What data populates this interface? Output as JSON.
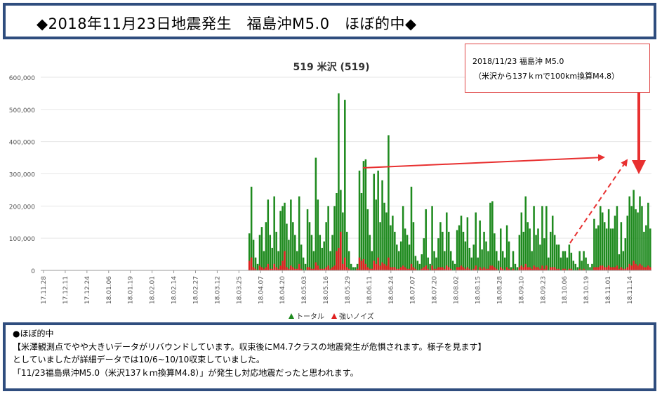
{
  "header": {
    "title": "◆2018年11月23日地震発生　福島沖M5.0　ほぼ的中◆"
  },
  "annotation": {
    "line1": "2018/11/23 福島沖 M5.0",
    "line2": "（米沢から137ｋｍで100km換算M4.8）"
  },
  "summary": {
    "lines": [
      "●ほぼ的中",
      "【米澤観測点でやや大きいデータがリバウンドしています。収束後にM4.7クラスの地震発生が危惧されます。様子を見ます】",
      "としていましたが詳細データでは10/6~10/10収束していました。",
      "「11/23福島県沖M5.0（米沢137ｋｍ換算M4.8）」が発生し対応地震だったと思われます。"
    ]
  },
  "colors": {
    "frame": "#2f4d7e",
    "total": "#1e8a1e",
    "noise": "#e02020",
    "arrow": "#e83030",
    "grid": "#e6e6e6"
  },
  "chart_data": {
    "type": "bar",
    "title": "519 米沢 (519)",
    "ylim": [
      0,
      600000
    ],
    "yticks": [
      "0",
      "100,000",
      "200,000",
      "300,000",
      "400,000",
      "500,000",
      "600,000"
    ],
    "xticks": [
      "17.11.28",
      "17.12.11",
      "17.12.24",
      "18.01.06",
      "18.01.19",
      "18.02.01",
      "18.02.14",
      "18.02.27",
      "18.03.12",
      "18.03.25",
      "18.04.07",
      "18.04.20",
      "18.05.03",
      "18.05.16",
      "18.05.29",
      "18.06.11",
      "18.06.24",
      "18.07.07",
      "18.07.20",
      "18.08.02",
      "18.08.15",
      "18.08.28",
      "18.09.10",
      "18.09.23",
      "18.10.06",
      "18.10.19",
      "18.11.01",
      "18.11.14"
    ],
    "grid": true,
    "legend_position": "bottom",
    "series": [
      {
        "name": "トータル",
        "values": [
          0,
          0,
          0,
          0,
          0,
          0,
          0,
          0,
          0,
          0,
          0,
          0,
          0,
          0,
          0,
          0,
          0,
          0,
          0,
          0,
          0,
          0,
          0,
          0,
          0,
          0,
          0,
          0,
          0,
          0,
          0,
          0,
          0,
          0,
          0,
          0,
          0,
          0,
          0,
          0,
          0,
          0,
          0,
          0,
          0,
          0,
          0,
          0,
          0,
          0,
          0,
          0,
          0,
          0,
          0,
          0,
          0,
          0,
          0,
          0,
          0,
          0,
          0,
          0,
          0,
          0,
          0,
          0,
          0,
          0,
          0,
          0,
          0,
          0,
          0,
          0,
          0,
          0,
          0,
          0,
          0,
          0,
          0,
          0,
          0,
          0,
          0,
          0,
          0,
          0,
          0,
          0,
          0,
          0,
          0,
          0,
          0,
          0,
          0,
          0,
          115000,
          260000,
          95000,
          40000,
          20000,
          110000,
          135000,
          60000,
          150000,
          220000,
          110000,
          70000,
          230000,
          120000,
          60000,
          185000,
          200000,
          210000,
          145000,
          95000,
          220000,
          150000,
          110000,
          60000,
          230000,
          80000,
          40000,
          20000,
          190000,
          150000,
          110000,
          60000,
          350000,
          220000,
          110000,
          70000,
          90000,
          150000,
          200000,
          60000,
          110000,
          200000,
          240000,
          550000,
          250000,
          180000,
          530000,
          120000,
          60000,
          20000,
          10000,
          10000,
          20000,
          310000,
          240000,
          340000,
          345000,
          190000,
          110000,
          60000,
          300000,
          220000,
          310000,
          150000,
          280000,
          210000,
          180000,
          420000,
          140000,
          170000,
          120000,
          80000,
          60000,
          90000,
          200000,
          130000,
          110000,
          80000,
          260000,
          150000,
          45000,
          30000,
          20000,
          50000,
          100000,
          190000,
          40000,
          20000,
          200000,
          60000,
          40000,
          100000,
          150000,
          120000,
          60000,
          180000,
          120000,
          60000,
          30000,
          20000,
          125000,
          140000,
          170000,
          120000,
          90000,
          165000,
          70000,
          40000,
          80000,
          180000,
          40000,
          155000,
          65000,
          120000,
          90000,
          60000,
          210000,
          215000,
          115000,
          60000,
          30000,
          130000,
          60000,
          40000,
          140000,
          90000,
          10000,
          60000,
          20000,
          10000,
          110000,
          180000,
          120000,
          230000,
          150000,
          130000,
          60000,
          200000,
          110000,
          130000,
          80000,
          200000,
          100000,
          200000,
          40000,
          120000,
          170000,
          110000,
          80000,
          80000,
          40000,
          60000,
          60000,
          40000,
          80000,
          55000,
          30000,
          20000,
          10000,
          60000,
          30000,
          60000,
          40000,
          20000,
          10000,
          20000,
          160000,
          130000,
          140000,
          200000,
          180000,
          150000,
          130000,
          190000,
          130000,
          130000,
          170000,
          200000,
          50000,
          150000,
          60000,
          100000,
          170000,
          230000,
          200000,
          250000,
          190000,
          180000,
          230000,
          200000,
          120000,
          140000,
          210000,
          130000
        ]
      },
      {
        "name": "強いノイズ",
        "values": [
          0,
          0,
          0,
          0,
          0,
          0,
          0,
          0,
          0,
          0,
          0,
          0,
          0,
          0,
          0,
          0,
          0,
          0,
          0,
          0,
          0,
          0,
          0,
          0,
          0,
          0,
          0,
          0,
          0,
          0,
          0,
          0,
          0,
          0,
          0,
          0,
          0,
          0,
          0,
          0,
          0,
          0,
          0,
          0,
          0,
          0,
          0,
          0,
          0,
          0,
          0,
          0,
          0,
          0,
          0,
          0,
          0,
          0,
          0,
          0,
          0,
          0,
          0,
          0,
          0,
          0,
          0,
          0,
          0,
          0,
          0,
          0,
          0,
          0,
          0,
          0,
          0,
          0,
          0,
          0,
          0,
          0,
          0,
          0,
          0,
          0,
          0,
          0,
          0,
          0,
          0,
          0,
          0,
          0,
          0,
          0,
          0,
          0,
          0,
          0,
          30000,
          40000,
          10000,
          5000,
          0,
          15000,
          10000,
          5000,
          10000,
          20000,
          5000,
          5000,
          20000,
          10000,
          5000,
          15000,
          30000,
          60000,
          10000,
          5000,
          15000,
          10000,
          5000,
          5000,
          20000,
          5000,
          0,
          0,
          10000,
          10000,
          5000,
          5000,
          25000,
          15000,
          5000,
          5000,
          5000,
          10000,
          15000,
          5000,
          10000,
          15000,
          60000,
          70000,
          120000,
          20000,
          40000,
          10000,
          5000,
          0,
          0,
          0,
          5000,
          40000,
          30000,
          35000,
          20000,
          10000,
          5000,
          5000,
          30000,
          20000,
          40000,
          15000,
          25000,
          20000,
          15000,
          40000,
          10000,
          10000,
          10000,
          5000,
          5000,
          10000,
          15000,
          10000,
          5000,
          5000,
          20000,
          10000,
          5000,
          0,
          0,
          5000,
          10000,
          15000,
          5000,
          0,
          15000,
          5000,
          5000,
          10000,
          10000,
          10000,
          5000,
          15000,
          10000,
          5000,
          0,
          0,
          10000,
          10000,
          15000,
          10000,
          5000,
          10000,
          5000,
          0,
          5000,
          15000,
          0,
          10000,
          5000,
          10000,
          5000,
          5000,
          15000,
          15000,
          10000,
          5000,
          0,
          10000,
          5000,
          0,
          10000,
          5000,
          0,
          5000,
          0,
          0,
          10000,
          15000,
          10000,
          20000,
          10000,
          10000,
          5000,
          15000,
          10000,
          10000,
          5000,
          15000,
          5000,
          15000,
          0,
          10000,
          10000,
          10000,
          5000,
          5000,
          0,
          5000,
          5000,
          0,
          5000,
          5000,
          0,
          0,
          0,
          5000,
          0,
          5000,
          0,
          0,
          0,
          0,
          10000,
          10000,
          10000,
          15000,
          15000,
          10000,
          10000,
          15000,
          10000,
          10000,
          10000,
          15000,
          5000,
          10000,
          5000,
          5000,
          10000,
          20000,
          15000,
          30000,
          20000,
          15000,
          20000,
          15000,
          10000,
          10000,
          15000,
          10000
        ]
      }
    ]
  }
}
